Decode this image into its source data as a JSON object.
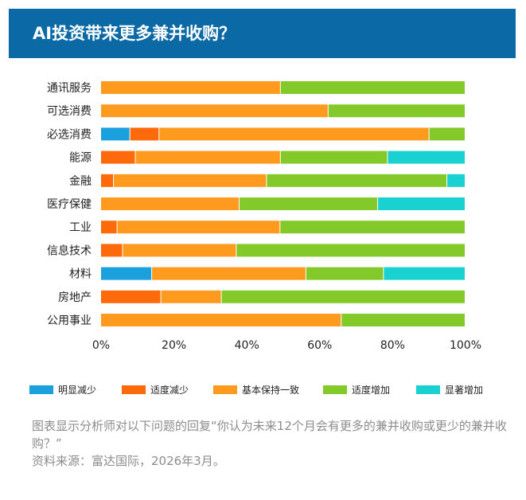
{
  "header": {
    "title": "AI投资带来更多兼并收购？"
  },
  "chart_data": {
    "type": "bar",
    "orientation": "horizontal",
    "stacked": true,
    "title": "AI投资带来更多兼并收购？",
    "categories": [
      "通讯服务",
      "可选消费",
      "必选消费",
      "能源",
      "金融",
      "医疗保健",
      "工业",
      "信息技术",
      "材料",
      "房地产",
      "公用事业"
    ],
    "xlim": [
      0,
      100
    ],
    "x_ticks": [
      "0%",
      "20%",
      "40%",
      "60%",
      "80%",
      "100%"
    ],
    "grid": false,
    "legend_position": "bottom",
    "series": [
      {
        "name": "明显减少",
        "color": "#1aa0dc",
        "values": [
          0,
          0,
          8,
          0,
          0,
          0,
          0,
          0,
          14,
          0,
          0
        ]
      },
      {
        "name": "适度减少",
        "color": "#fd6a0c",
        "values": [
          0,
          0,
          8,
          9.5,
          3.5,
          0,
          4.5,
          6,
          0,
          16.5,
          0
        ]
      },
      {
        "name": "基本保持一致",
        "color": "#fe9b1e",
        "values": [
          49.3,
          62.4,
          74.1,
          39.8,
          42,
          38,
          44.7,
          31.2,
          42.3,
          16.6,
          66
        ]
      },
      {
        "name": "适度增加",
        "color": "#83c92a",
        "values": [
          50.7,
          37.6,
          9.9,
          29.4,
          49.5,
          38,
          50.8,
          62.8,
          21.3,
          66.9,
          34
        ]
      },
      {
        "name": "显著增加",
        "color": "#1ad1d1",
        "values": [
          0,
          0,
          0,
          21.3,
          5,
          24,
          0,
          0,
          22.4,
          0,
          0
        ]
      }
    ]
  },
  "footnote": {
    "line1": "图表显示分析师对以下问题的回复“你认为未来12个月会有更多的兼并收购或更少的兼并收购？”",
    "line2": "资料来源：富达国际，2026年3月。"
  }
}
